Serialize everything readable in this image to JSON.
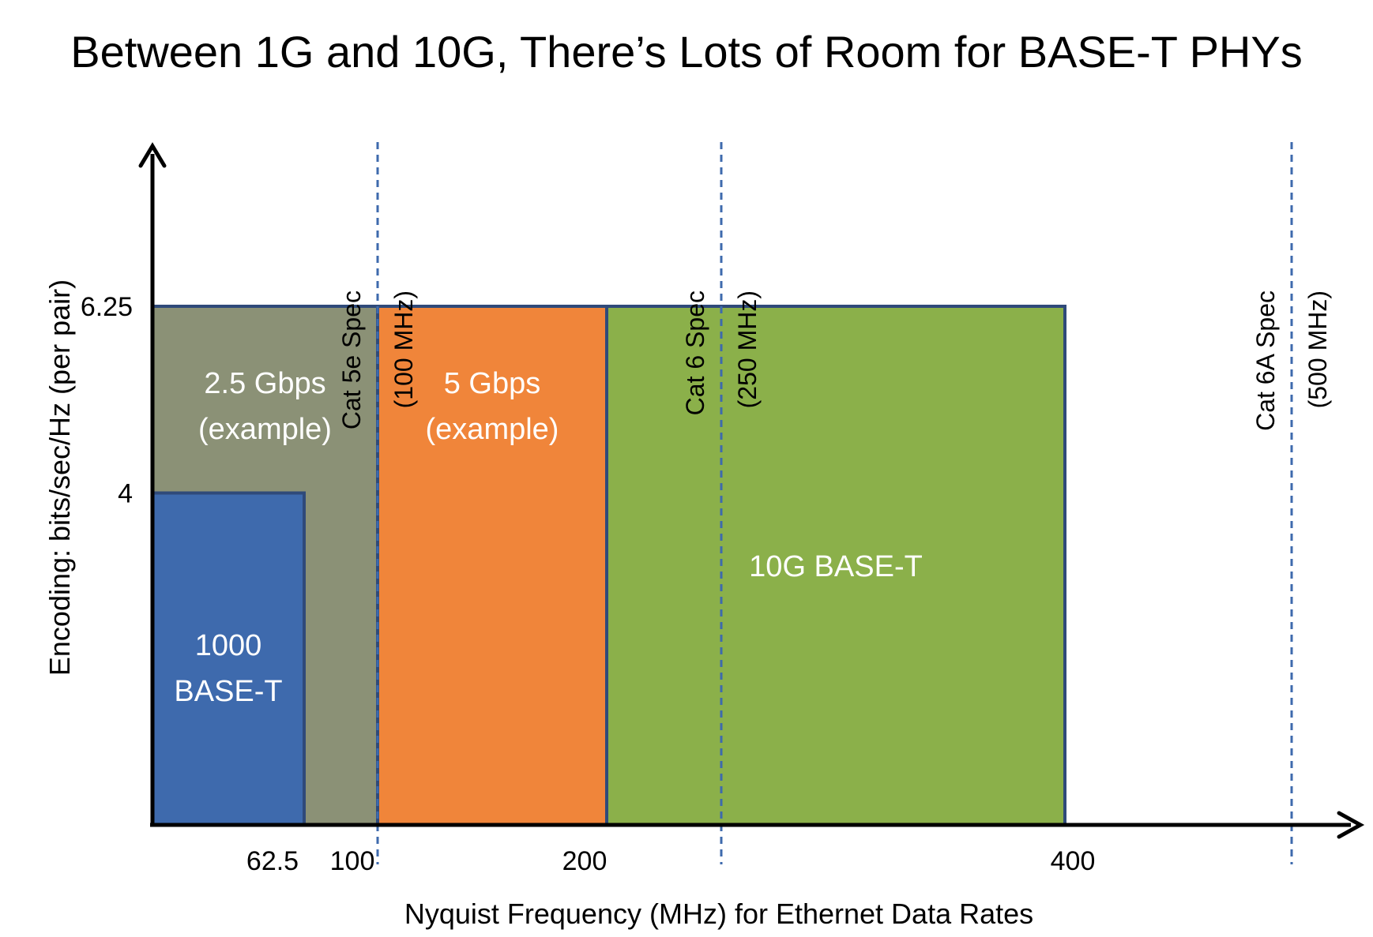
{
  "title": "Between 1G and 10G, There’s Lots of Room for BASE-T PHYs",
  "chart_data": {
    "type": "area",
    "xlabel": "Nyquist Frequency (MHz) for Ethernet Data Rates",
    "ylabel": "Encoding: bits/sec/Hz (per pair)",
    "x_ticks": [
      "62.5",
      "100",
      "200",
      "400"
    ],
    "y_ticks": [
      "4",
      "6.25"
    ],
    "regions": [
      {
        "line1": "2.5 Gbps",
        "line2": "(example)",
        "x_start": 0,
        "x_end": 100,
        "y_top": 6.25,
        "color": "#8b9176"
      },
      {
        "line1": "5 Gbps",
        "line2": "(example)",
        "x_start": 100,
        "x_end": 200,
        "y_top": 6.25,
        "color": "#f0853a"
      },
      {
        "line1": "10G BASE-T",
        "line2": "",
        "x_start": 200,
        "x_end": 400,
        "y_top": 6.25,
        "color": "#8bb04a"
      },
      {
        "line1": "1000",
        "line2": "BASE-T",
        "x_start": 0,
        "x_end": 62.5,
        "y_top": 4,
        "color": "#3e6aad"
      }
    ],
    "spec_lines": [
      {
        "label": "Cat 5e Spec",
        "freq": "(100 MHz)",
        "x": 100
      },
      {
        "label": "Cat 6 Spec",
        "freq": "(250 MHz)",
        "x": 250
      },
      {
        "label": "Cat 6A Spec",
        "freq": "(500 MHz)",
        "x": 500
      }
    ],
    "border_color": "#2f4a7a",
    "spec_line_color": "#3e6aad"
  }
}
